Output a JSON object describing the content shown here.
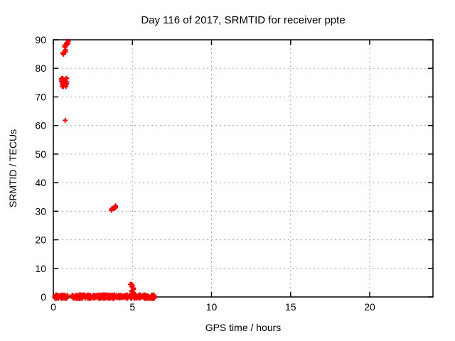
{
  "chart_data": {
    "type": "scatter",
    "title": "Day 116 of 2017, SRMTID for receiver ppte",
    "xlabel": "GPS time / hours",
    "ylabel": "SRMTID / TECUs",
    "xlim": [
      0,
      24
    ],
    "ylim": [
      0,
      90
    ],
    "xticks": [
      0,
      5,
      10,
      15,
      20
    ],
    "yticks": [
      0,
      10,
      20,
      30,
      40,
      50,
      60,
      70,
      80,
      90
    ],
    "grid": true,
    "legend": "none",
    "marker": "plus",
    "colors": {
      "marker": "#ff0000",
      "grid": "#a8a8a8",
      "border": "#000000",
      "background": "#ffffff",
      "text": "#000000"
    },
    "series_name": "SRMTID",
    "clusters": [
      {
        "name": "baseline-early",
        "x": [
          0.08,
          0.88
        ],
        "y": [
          -0.55,
          0.75
        ],
        "n": 55,
        "corr": 0
      },
      {
        "name": "baseline-mid",
        "x": [
          1.18,
          4.72
        ],
        "y": [
          -0.55,
          0.75
        ],
        "n": 230,
        "corr": 0
      },
      {
        "name": "baseline-late",
        "x": [
          4.86,
          6.4
        ],
        "y": [
          -0.55,
          0.75
        ],
        "n": 100,
        "corr": 0
      },
      {
        "name": "spike-88-tecu",
        "x": [
          0.72,
          0.95
        ],
        "y": [
          87.4,
          89.5
        ],
        "n": 9,
        "corr": 1
      },
      {
        "name": "spike-86-tecu",
        "x": [
          0.6,
          0.8
        ],
        "y": [
          84.8,
          86.5
        ],
        "n": 6,
        "corr": 1
      },
      {
        "name": "spike-75-tecu",
        "x": [
          0.5,
          0.86
        ],
        "y": [
          73.5,
          76.7
        ],
        "n": 28,
        "corr": 0
      },
      {
        "name": "spike-31-tecu",
        "x": [
          3.64,
          3.96
        ],
        "y": [
          30.0,
          31.9
        ],
        "n": 10,
        "corr": 1
      },
      {
        "name": "spike-3-tecu",
        "x": [
          4.86,
          5.14
        ],
        "y": [
          1.0,
          4.6
        ],
        "n": 14,
        "corr": 0
      }
    ],
    "singleton_points": [
      [
        0.75,
        61.8
      ]
    ]
  }
}
